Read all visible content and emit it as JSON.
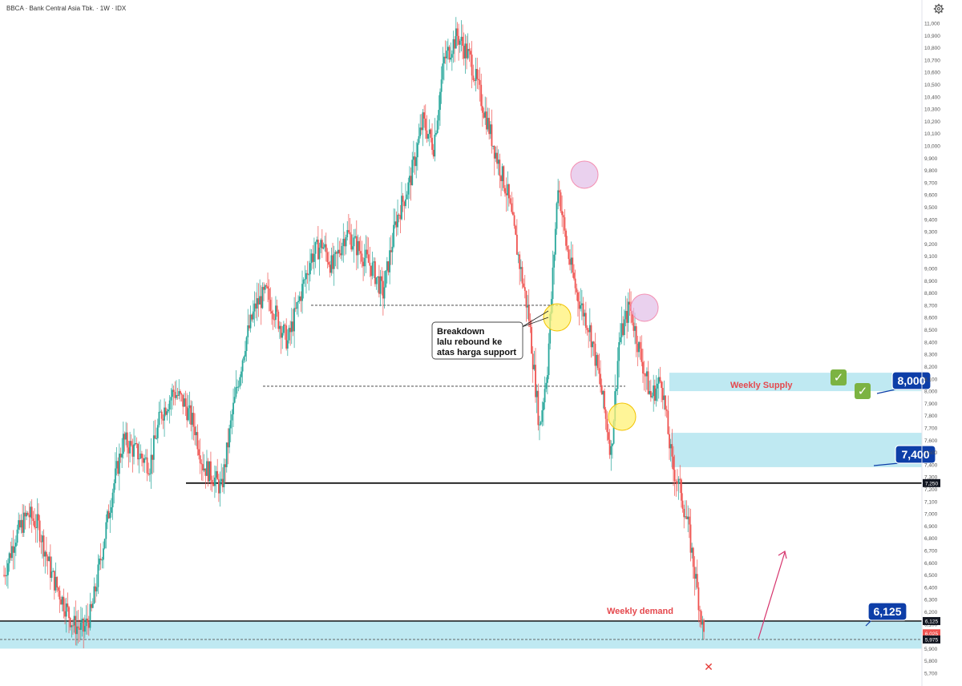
{
  "header": {
    "title": "BBCA · Bank Central Asia Tbk. · 1W · IDX"
  },
  "colors": {
    "up": "#26a69a",
    "down": "#ef5350",
    "zone": "#bfe9f2",
    "badge": "#0d3ea8",
    "arrow": "#d6336c"
  },
  "chart_data": {
    "type": "candlestick",
    "title": "BBCA · Bank Central Asia Tbk. · 1W · IDX",
    "y_ticks": [
      11000,
      10900,
      10800,
      10700,
      10600,
      10500,
      10400,
      10300,
      10200,
      10100,
      10000,
      9900,
      9800,
      9700,
      9600,
      9500,
      9400,
      9300,
      9200,
      9100,
      9000,
      8900,
      8800,
      8700,
      8600,
      8500,
      8400,
      8300,
      8200,
      8100,
      8000,
      7900,
      7800,
      7700,
      7600,
      7500,
      7400,
      7300,
      7200,
      7100,
      7000,
      6900,
      6800,
      6700,
      6600,
      6500,
      6400,
      6300,
      6200,
      6100,
      6000,
      5900,
      5800,
      5700
    ],
    "ylim": [
      5680,
      11060
    ],
    "price_series_anchors": [
      [
        0,
        6500
      ],
      [
        8,
        6800
      ],
      [
        18,
        7000
      ],
      [
        26,
        6900
      ],
      [
        36,
        6500
      ],
      [
        44,
        6300
      ],
      [
        52,
        6100
      ],
      [
        60,
        6050
      ],
      [
        66,
        6200
      ],
      [
        74,
        6700
      ],
      [
        82,
        7200
      ],
      [
        90,
        7600
      ],
      [
        100,
        7500
      ],
      [
        110,
        7400
      ],
      [
        118,
        7800
      ],
      [
        128,
        8000
      ],
      [
        136,
        7900
      ],
      [
        144,
        7700
      ],
      [
        150,
        7400
      ],
      [
        158,
        7300
      ],
      [
        164,
        7200
      ],
      [
        172,
        7800
      ],
      [
        182,
        8400
      ],
      [
        190,
        8700
      ],
      [
        198,
        8800
      ],
      [
        206,
        8600
      ],
      [
        214,
        8400
      ],
      [
        224,
        8800
      ],
      [
        232,
        9100
      ],
      [
        240,
        9200
      ],
      [
        248,
        9000
      ],
      [
        258,
        9300
      ],
      [
        268,
        9150
      ],
      [
        278,
        9000
      ],
      [
        286,
        8800
      ],
      [
        296,
        9400
      ],
      [
        306,
        9700
      ],
      [
        316,
        10200
      ],
      [
        324,
        10000
      ],
      [
        332,
        10700
      ],
      [
        342,
        10900
      ],
      [
        352,
        10700
      ],
      [
        362,
        10300
      ],
      [
        372,
        9900
      ],
      [
        380,
        9600
      ],
      [
        388,
        9100
      ],
      [
        396,
        8600
      ],
      [
        404,
        7700
      ],
      [
        410,
        8200
      ],
      [
        418,
        9700
      ],
      [
        424,
        9200
      ],
      [
        432,
        8800
      ],
      [
        442,
        8500
      ],
      [
        450,
        8050
      ],
      [
        458,
        7500
      ],
      [
        464,
        8400
      ],
      [
        472,
        8700
      ],
      [
        480,
        8300
      ],
      [
        488,
        7950
      ],
      [
        496,
        8100
      ],
      [
        504,
        7400
      ],
      [
        510,
        7200
      ],
      [
        516,
        6900
      ],
      [
        522,
        6450
      ],
      [
        528,
        6010
      ]
    ],
    "horizontal_lines": [
      {
        "price": 7250,
        "style": "solid"
      },
      {
        "price": 6125,
        "style": "solid"
      },
      {
        "price": 5975,
        "style": "dashed"
      },
      {
        "price": 8700,
        "style": "dashed"
      },
      {
        "price": 8040,
        "style": "dashed"
      }
    ],
    "zones": [
      {
        "name": "Weekly Supply",
        "from": 8000,
        "to": 8150
      },
      {
        "name": "",
        "from": 7380,
        "to": 7660
      },
      {
        "name": "Weekly demand",
        "from": 5900,
        "to": 6125
      }
    ],
    "price_labels": [
      {
        "text": "7,250",
        "price": 7250,
        "color": "#131722"
      },
      {
        "text": "6,125",
        "price": 6125,
        "color": "#131722"
      },
      {
        "text": "6,025",
        "price": 6025,
        "color": "#ef5350"
      },
      {
        "text": "5,975",
        "price": 5975,
        "color": "#131722"
      }
    ],
    "grid": false
  },
  "annotations": {
    "callout_lines": [
      "Breakdown",
      "lalu rebound ke",
      "atas harga support"
    ],
    "weekly_supply": "Weekly Supply",
    "weekly_demand": "Weekly demand",
    "badge_8000": "8,000",
    "badge_7400": "7,400",
    "badge_6125": "6,125",
    "check_mark": "✓",
    "x_mark": "✕"
  }
}
